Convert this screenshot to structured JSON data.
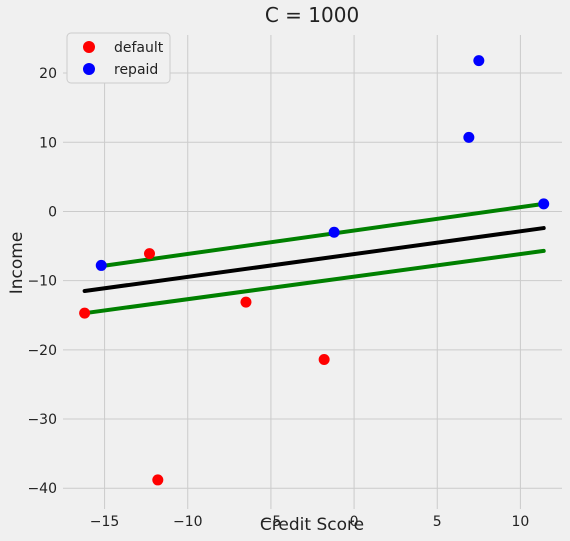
{
  "chart_data": {
    "type": "scatter",
    "title": "C = 1000",
    "xlabel": "Credit Score",
    "ylabel": "Income",
    "xlim": [
      -17.5,
      12.5
    ],
    "ylim": [
      -43,
      25.5
    ],
    "xticks": [
      -15,
      -10,
      -5,
      0,
      5,
      10
    ],
    "yticks": [
      -40,
      -30,
      -20,
      -10,
      0,
      10,
      20
    ],
    "grid": true,
    "legend_position": "top-left",
    "series": [
      {
        "name": "default",
        "color": "#ff0000",
        "points": [
          [
            -16.2,
            -14.7
          ],
          [
            -12.3,
            -6.1
          ],
          [
            -11.8,
            -38.8
          ],
          [
            -6.5,
            -13.1
          ],
          [
            -1.8,
            -21.4
          ]
        ]
      },
      {
        "name": "repaid",
        "color": "#0000ff",
        "points": [
          [
            -15.2,
            -7.8
          ],
          [
            -1.2,
            -3.0
          ],
          [
            6.9,
            10.7
          ],
          [
            7.5,
            21.8
          ],
          [
            11.4,
            1.1
          ]
        ]
      }
    ],
    "lines": [
      {
        "role": "decision-boundary",
        "color": "#000000",
        "from": [
          -16.2,
          -11.5
        ],
        "to": [
          11.4,
          -2.4
        ]
      },
      {
        "role": "margin-upper",
        "color": "#008000",
        "from": [
          -15.2,
          -7.9
        ],
        "to": [
          11.4,
          1.1
        ]
      },
      {
        "role": "margin-lower",
        "color": "#008000",
        "from": [
          -16.2,
          -14.7
        ],
        "to": [
          11.4,
          -5.7
        ]
      }
    ]
  }
}
